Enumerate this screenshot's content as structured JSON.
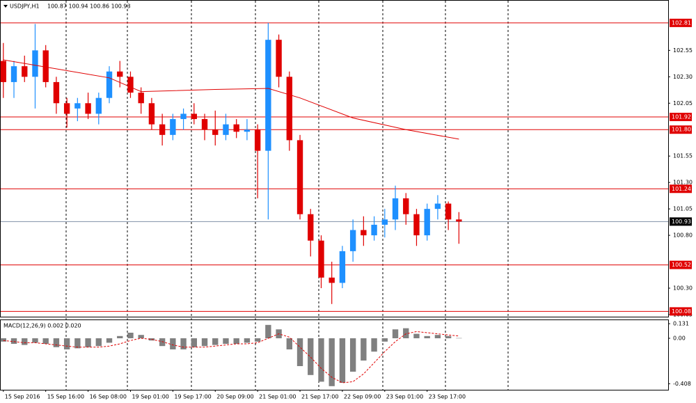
{
  "chart_data": {
    "type": "candlestick",
    "title": "USDJPY,H1",
    "ohlc_header": "100.87 100.94 100.86 100.93",
    "up_color": "#1e90ff",
    "down_color": "#e00000",
    "x": [
      0,
      4,
      8,
      12,
      16,
      20,
      24,
      28,
      32,
      36,
      40,
      44,
      48,
      52,
      56,
      60,
      64,
      68,
      72,
      76,
      80,
      84,
      88,
      92,
      96,
      100,
      104,
      108,
      112,
      116,
      120,
      124,
      128,
      132,
      136,
      140,
      144,
      148,
      152,
      156,
      160,
      164,
      168,
      172
    ],
    "open": [
      102.45,
      102.25,
      102.4,
      102.3,
      102.55,
      102.25,
      102.05,
      102.0,
      102.05,
      101.95,
      102.1,
      102.35,
      102.3,
      102.15,
      102.05,
      101.85,
      101.75,
      101.9,
      101.95,
      101.9,
      101.8,
      101.75,
      101.85,
      101.78,
      101.8,
      101.6,
      102.65,
      102.3,
      101.7,
      101.0,
      100.75,
      100.4,
      100.35,
      100.65,
      100.85,
      100.8,
      100.9,
      100.95,
      101.15,
      101.0,
      100.8,
      101.05,
      101.1,
      100.95
    ],
    "high": [
      102.62,
      102.45,
      102.5,
      102.8,
      102.6,
      102.3,
      102.1,
      102.1,
      102.15,
      102.15,
      102.4,
      102.45,
      102.35,
      102.2,
      102.1,
      101.95,
      101.95,
      102.0,
      102.05,
      101.95,
      101.98,
      101.95,
      101.9,
      101.9,
      101.85,
      102.81,
      102.7,
      102.35,
      101.75,
      101.05,
      100.8,
      100.55,
      100.7,
      100.95,
      100.98,
      100.98,
      101.05,
      101.27,
      101.2,
      101.05,
      101.1,
      101.18,
      101.12,
      101.02
    ],
    "low": [
      102.1,
      102.1,
      102.25,
      102.0,
      102.2,
      101.95,
      101.82,
      101.88,
      101.9,
      101.85,
      102.05,
      102.2,
      102.1,
      101.95,
      101.8,
      101.65,
      101.7,
      101.8,
      101.85,
      101.7,
      101.65,
      101.7,
      101.72,
      101.7,
      101.15,
      100.95,
      102.2,
      101.6,
      100.95,
      100.6,
      100.3,
      100.15,
      100.3,
      100.55,
      100.7,
      100.75,
      100.78,
      100.85,
      100.9,
      100.7,
      100.75,
      100.95,
      100.85,
      100.72
    ],
    "close": [
      102.25,
      102.4,
      102.3,
      102.55,
      102.25,
      102.05,
      101.95,
      102.05,
      101.95,
      102.1,
      102.35,
      102.3,
      102.15,
      102.05,
      101.85,
      101.75,
      101.9,
      101.95,
      101.9,
      101.8,
      101.75,
      101.85,
      101.78,
      101.8,
      101.6,
      102.65,
      102.3,
      101.7,
      101.0,
      100.75,
      100.4,
      100.35,
      100.65,
      100.85,
      100.8,
      100.9,
      100.95,
      101.15,
      101.0,
      100.8,
      101.05,
      101.1,
      100.95,
      100.93
    ],
    "moving_average": {
      "color": "#e00000",
      "x": [
        0,
        40,
        52,
        80,
        100,
        112,
        132,
        152,
        172
      ],
      "values": [
        102.46,
        102.29,
        102.16,
        102.18,
        102.19,
        102.1,
        101.91,
        101.8,
        101.71
      ]
    },
    "xlim": [
      -1,
      251
    ],
    "ylim": [
      100.03,
      103.02
    ],
    "yticks": [
      {
        "value": 102.55,
        "label": "102.55"
      },
      {
        "value": 102.3,
        "label": "102.30"
      },
      {
        "value": 102.05,
        "label": "102.05"
      },
      {
        "value": 101.55,
        "label": "101.55"
      },
      {
        "value": 101.3,
        "label": "101.30"
      },
      {
        "value": 101.05,
        "label": "101.05"
      },
      {
        "value": 100.8,
        "label": "100.80"
      },
      {
        "value": 100.3,
        "label": "100.30"
      },
      {
        "value": 100.05,
        "label": "100.05"
      }
    ],
    "levels": [
      102.81,
      101.92,
      {
        "value": 101.8,
        "label": "101.80"
      },
      101.24,
      100.52,
      100.08
    ],
    "level_color": "#e00000",
    "current_price": 100.93,
    "xticks": [
      {
        "value": 0,
        "label": "15 Sep 2016"
      },
      {
        "value": 16,
        "label": "15 Sep 16:00"
      },
      {
        "value": 32,
        "label": "16 Sep 08:00"
      },
      {
        "value": 48,
        "label": "19 Sep 01:00"
      },
      {
        "value": 64,
        "label": "19 Sep 17:00"
      },
      {
        "value": 80,
        "label": "20 Sep 09:00"
      },
      {
        "value": 96,
        "label": "21 Sep 01:00"
      },
      {
        "value": 112,
        "label": "21 Sep 17:00"
      },
      {
        "value": 128,
        "label": "22 Sep 09:00"
      },
      {
        "value": 144,
        "label": "23 Sep 01:00"
      },
      {
        "value": 160,
        "label": "23 Sep 17:00"
      }
    ],
    "macd": {
      "label": "MACD(12,26,9) 0.002 0.020",
      "ylim": [
        -0.4625,
        0.1625
      ],
      "yticks": [
        0.131,
        {
          "value": 0,
          "label": "0.00"
        },
        -0.408
      ],
      "histogram_color": "#808080",
      "signal_color": "#e00000",
      "values": [
        -0.03,
        -0.05,
        -0.06,
        -0.04,
        -0.05,
        -0.08,
        -0.1,
        -0.09,
        -0.08,
        -0.07,
        -0.04,
        0.02,
        0.05,
        0.03,
        -0.02,
        -0.07,
        -0.1,
        -0.1,
        -0.08,
        -0.07,
        -0.06,
        -0.05,
        -0.05,
        -0.04,
        -0.03,
        0.12,
        0.08,
        -0.1,
        -0.25,
        -0.33,
        -0.39,
        -0.43,
        -0.4,
        -0.3,
        -0.2,
        -0.12,
        -0.03,
        0.08,
        0.09,
        0.04,
        0.02,
        0.03,
        0.02,
        0.002
      ],
      "signal": [
        -0.02,
        -0.03,
        -0.04,
        -0.04,
        -0.05,
        -0.06,
        -0.07,
        -0.08,
        -0.08,
        -0.08,
        -0.07,
        -0.05,
        -0.02,
        0,
        -0.01,
        -0.03,
        -0.06,
        -0.08,
        -0.08,
        -0.08,
        -0.07,
        -0.06,
        -0.05,
        -0.05,
        -0.04,
        0,
        0.04,
        0.01,
        -0.08,
        -0.17,
        -0.27,
        -0.35,
        -0.4,
        -0.39,
        -0.32,
        -0.22,
        -0.12,
        -0.03,
        0.04,
        0.06,
        0.05,
        0.04,
        0.03,
        0.02
      ]
    }
  }
}
